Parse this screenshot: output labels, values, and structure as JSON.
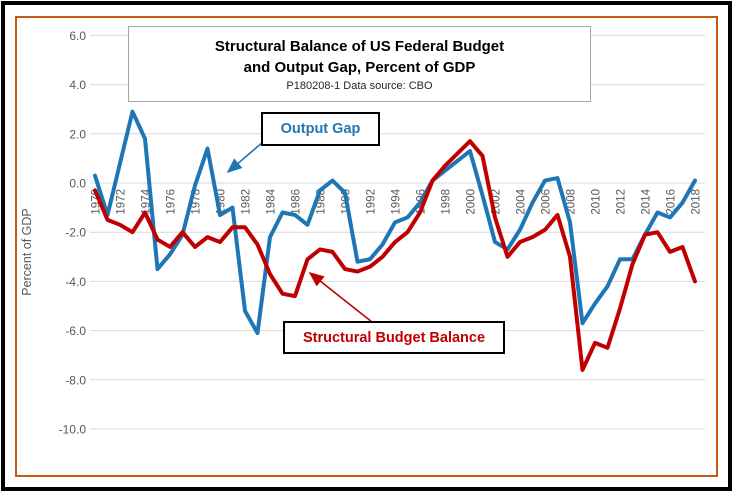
{
  "chart_data": {
    "type": "line",
    "title_line1": "Structural Balance of US Federal Budget",
    "title_line2": "and Output Gap, Percent of GDP",
    "subtitle": "P180208-1 Data source: CBO",
    "ylabel": "Percent of GDP",
    "ylim": [
      -10.0,
      6.0
    ],
    "yticks": [
      6,
      4,
      2,
      0,
      -2,
      -4,
      -6,
      -8,
      -10
    ],
    "ytick_labels": [
      "6.0",
      "4.0",
      "2.0",
      "0.0",
      "-2.0",
      "-4.0",
      "-6.0",
      "-8.0",
      "-10.0"
    ],
    "xticks": [
      1970,
      1972,
      1974,
      1976,
      1978,
      1980,
      1982,
      1984,
      1986,
      1988,
      1990,
      1992,
      1994,
      1996,
      1998,
      2000,
      2002,
      2004,
      2006,
      2008,
      2010,
      2012,
      2014,
      2016,
      2018
    ],
    "xtick_labels": [
      "1970",
      "1972",
      "1974",
      "1976",
      "1978",
      "1980",
      "1982",
      "1984",
      "1986",
      "1988",
      "1990",
      "1992",
      "1994",
      "1996",
      "1998",
      "2000",
      "2002",
      "2004",
      "2006",
      "2008",
      "2010",
      "2012",
      "2014",
      "2016",
      "2018"
    ],
    "years": [
      1970,
      1971,
      1972,
      1973,
      1974,
      1975,
      1976,
      1977,
      1978,
      1979,
      1980,
      1981,
      1982,
      1983,
      1984,
      1985,
      1986,
      1987,
      1988,
      1989,
      1990,
      1991,
      1992,
      1993,
      1994,
      1995,
      1996,
      1997,
      1998,
      1999,
      2000,
      2001,
      2002,
      2003,
      2004,
      2005,
      2006,
      2007,
      2008,
      2009,
      2010,
      2011,
      2012,
      2013,
      2014,
      2015,
      2016,
      2017,
      2018
    ],
    "series": [
      {
        "name": "Output Gap",
        "color": "#1F76B4",
        "values": [
          0.3,
          -1.3,
          0.8,
          2.9,
          1.8,
          -3.5,
          -2.9,
          -2.1,
          -0.1,
          1.4,
          -1.3,
          -1.0,
          -5.2,
          -6.1,
          -2.2,
          -1.2,
          -1.3,
          -1.7,
          -0.3,
          0.1,
          -0.4,
          -3.2,
          -3.1,
          -2.5,
          -1.6,
          -1.4,
          -0.8,
          0.1,
          0.5,
          0.9,
          1.3,
          -0.5,
          -2.4,
          -2.7,
          -1.9,
          -0.8,
          0.1,
          0.2,
          -1.6,
          -5.7,
          -4.9,
          -4.2,
          -3.1,
          -3.1,
          -2.1,
          -1.2,
          -1.4,
          -0.8,
          0.1
        ]
      },
      {
        "name": "Structural Budget Balance",
        "color": "#C00000",
        "values": [
          -0.3,
          -1.5,
          -1.7,
          -2.0,
          -1.2,
          -2.3,
          -2.6,
          -2.0,
          -2.6,
          -2.2,
          -2.4,
          -1.8,
          -1.8,
          -2.5,
          -3.7,
          -4.5,
          -4.6,
          -3.1,
          -2.7,
          -2.8,
          -3.5,
          -3.6,
          -3.4,
          -3.0,
          -2.4,
          -2.0,
          -1.2,
          0.1,
          0.7,
          1.2,
          1.7,
          1.1,
          -1.4,
          -3.0,
          -2.4,
          -2.2,
          -1.9,
          -1.3,
          -3.0,
          -7.6,
          -6.5,
          -6.7,
          -5.1,
          -3.3,
          -2.1,
          -2.0,
          -2.8,
          -2.6,
          -4.0
        ]
      }
    ],
    "annotations": {
      "output_gap": "Output Gap",
      "structural_balance": "Structural Budget Balance"
    },
    "grid": "horizontal-only",
    "legend_position": "inline-annotation-boxes-with-arrows",
    "colors": {
      "gridline": "#D9D9D9",
      "axis_text": "#595959",
      "chart_border": "#C55A11",
      "outer_border": "#000000",
      "title_box_border": "#A6A6A6"
    }
  }
}
